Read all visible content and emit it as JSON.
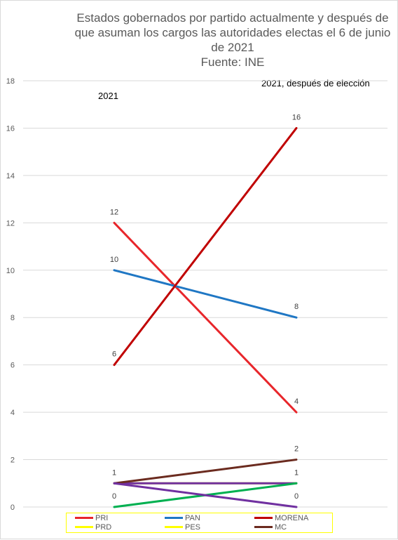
{
  "chart_data": {
    "type": "line",
    "title_lines": [
      "Estados gobernados por partido actualmente y  después de",
      "que asuman los cargos las autoridades electas el 6 de junio",
      "de 2021",
      "Fuente: INE"
    ],
    "categories": [
      "2021",
      "2021, después de elección"
    ],
    "ylim": [
      0,
      18
    ],
    "yticks": [
      0,
      2,
      4,
      6,
      8,
      10,
      12,
      14,
      16,
      18
    ],
    "grid": true,
    "legend_position": "bottom",
    "series": [
      {
        "name": "PRI",
        "values": [
          12,
          4
        ],
        "color": "#e8262b",
        "labels": [
          "12",
          "4"
        ]
      },
      {
        "name": "PAN",
        "values": [
          10,
          8
        ],
        "color": "#1f77c4",
        "labels": [
          "10",
          "8"
        ]
      },
      {
        "name": "MORENA",
        "values": [
          6,
          16
        ],
        "color": "#c00000",
        "labels": [
          "6",
          "16"
        ]
      },
      {
        "name": "PRD",
        "values": [
          1,
          1
        ],
        "color": "#ffff00",
        "labels": [
          "",
          ""
        ]
      },
      {
        "name": "PES",
        "values": [
          1,
          1
        ],
        "color": "#7030a0",
        "labels": [
          "1",
          "1"
        ]
      },
      {
        "name": "MC",
        "values": [
          1,
          2
        ],
        "color": "#6b2b1f",
        "labels": [
          "",
          "2"
        ]
      },
      {
        "name": "",
        "values": [
          0,
          1
        ],
        "color": "#00b050",
        "labels": [
          "0",
          ""
        ]
      },
      {
        "name": "",
        "values": [
          1,
          0
        ],
        "color": "#7030a0",
        "labels": [
          "",
          "0"
        ]
      }
    ]
  },
  "legend": [
    {
      "label": "PRI",
      "color": "#e8262b"
    },
    {
      "label": "PAN",
      "color": "#1f77c4"
    },
    {
      "label": "MORENA",
      "color": "#c00000"
    },
    {
      "label": "PRD",
      "color": "#ffff00"
    },
    {
      "label": "PES",
      "color": "#ffff00"
    },
    {
      "label": "MC",
      "color": "#6b2b1f"
    }
  ]
}
